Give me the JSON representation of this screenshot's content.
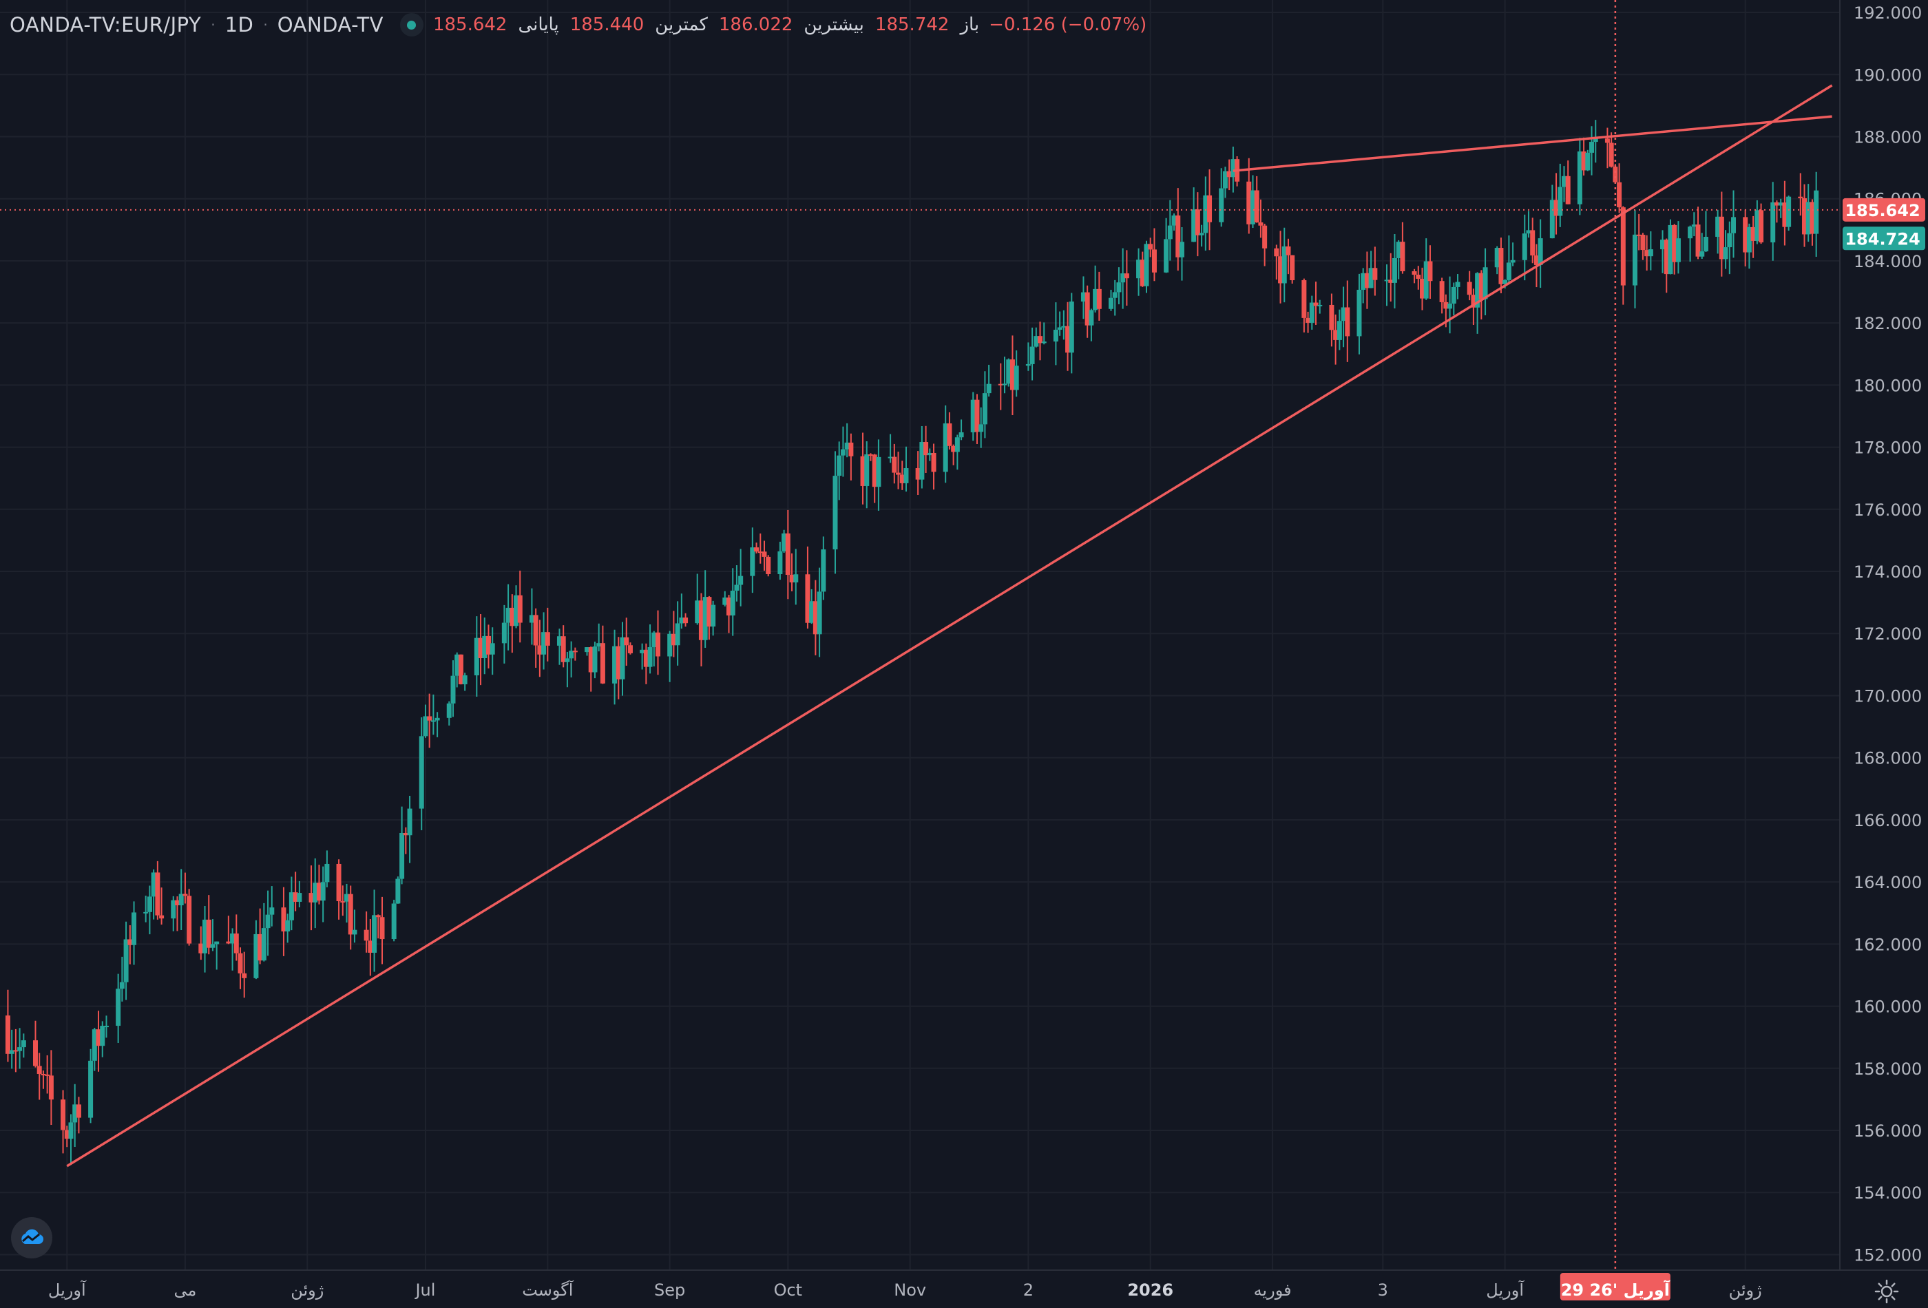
{
  "legend": {
    "symbol": "OANDA-TV:EUR/JPY",
    "interval": "1D",
    "exchange": "OANDA-TV",
    "open_label": "باز",
    "open_value": "185.742",
    "high_label": "بیشترین",
    "high_value": "186.022",
    "low_label": "کمترین",
    "low_value": "185.440",
    "close_label": "پایانی",
    "close_value": "185.642",
    "change": "−0.126 (−0.07%)",
    "status_icon": "market-status-dot"
  },
  "colors": {
    "background": "#131722",
    "up": "#26a69a",
    "down": "#ef5350",
    "drawing": "#f05d5e",
    "grid": "#1e222d",
    "text": "#b2b5be"
  },
  "price_axis": {
    "ticks": [
      "192.000",
      "190.000",
      "188.000",
      "186.000",
      "184.000",
      "182.000",
      "180.000",
      "178.000",
      "176.000",
      "174.000",
      "172.000",
      "170.000",
      "168.000",
      "166.000",
      "164.000",
      "162.000",
      "160.000",
      "158.000",
      "156.000",
      "154.000",
      "152.000"
    ],
    "last_price_badge": "185.642",
    "second_badge": "184.724"
  },
  "time_axis": {
    "labels": [
      "آوریل",
      "می",
      "ژوئن",
      "Jul",
      "آگوست",
      "Sep",
      "Oct",
      "Nov",
      "2",
      "2026",
      "فوریه",
      "3",
      "آوریل",
      "ژوئن"
    ],
    "crosshair_label": "29 آوریل '26"
  },
  "chart_data": {
    "type": "candlestick",
    "symbol": "EUR/JPY",
    "interval": "1D",
    "y_range": [
      151.5,
      192.4
    ],
    "x_range": [
      "2025-03-15",
      "2026-06-25"
    ],
    "key_points": [
      {
        "date": "2025-03-15",
        "price": 159.7
      },
      {
        "date": "2025-04-01",
        "price": 156.0
      },
      {
        "date": "2025-04-22",
        "price": 163.8
      },
      {
        "date": "2025-05-15",
        "price": 161.5
      },
      {
        "date": "2025-06-05",
        "price": 164.0
      },
      {
        "date": "2025-06-20",
        "price": 162.0
      },
      {
        "date": "2025-07-01",
        "price": 169.5
      },
      {
        "date": "2025-07-25",
        "price": 172.6
      },
      {
        "date": "2025-08-08",
        "price": 170.8
      },
      {
        "date": "2025-09-01",
        "price": 171.5
      },
      {
        "date": "2025-09-30",
        "price": 175.0
      },
      {
        "date": "2025-10-08",
        "price": 172.5
      },
      {
        "date": "2025-10-12",
        "price": 177.5
      },
      {
        "date": "2025-10-31",
        "price": 177.0
      },
      {
        "date": "2025-11-30",
        "price": 180.5
      },
      {
        "date": "2025-12-21",
        "price": 183.0
      },
      {
        "date": "2026-01-05",
        "price": 184.5
      },
      {
        "date": "2026-01-22",
        "price": 186.5
      },
      {
        "date": "2026-02-13",
        "price": 182.0
      },
      {
        "date": "2026-02-18",
        "price": 181.5
      },
      {
        "date": "2026-03-01",
        "price": 184.2
      },
      {
        "date": "2026-03-20",
        "price": 183.0
      },
      {
        "date": "2026-04-10",
        "price": 184.5
      },
      {
        "date": "2026-04-20",
        "price": 187.5
      },
      {
        "date": "2026-04-29",
        "price": 187.2
      },
      {
        "date": "2026-05-01",
        "price": 184.0
      },
      {
        "date": "2026-06-20",
        "price": 185.6
      }
    ],
    "last_close": 185.642,
    "trend_lines": [
      {
        "name": "ascending support",
        "from": {
          "date": "2025-04-01",
          "price": 154.85
        },
        "to": {
          "date": "2026-06-23",
          "price": 189.65
        }
      },
      {
        "name": "upper resistance",
        "from": {
          "date": "2026-01-22",
          "price": 186.9
        },
        "to": {
          "date": "2026-06-23",
          "price": 188.65
        }
      }
    ],
    "last_price_line": 185.642,
    "crosshair_date": "2026-04-29"
  }
}
